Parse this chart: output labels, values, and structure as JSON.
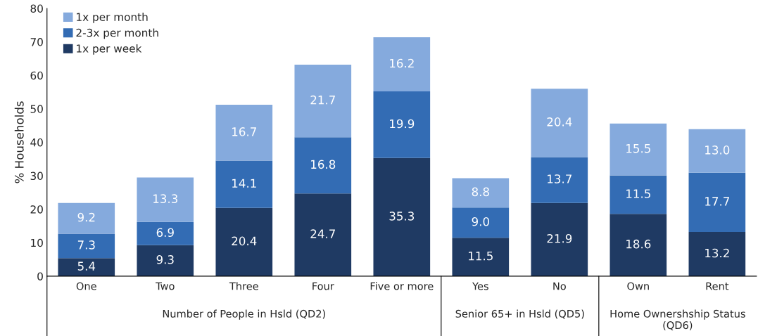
{
  "chart_data": {
    "type": "bar",
    "stacked": true,
    "ylabel": "% Households",
    "categories": [
      "One",
      "Two",
      "Three",
      "Four",
      "Five or more",
      "Yes",
      "No",
      "Own",
      "Rent"
    ],
    "series": [
      {
        "name": "1x per week",
        "color": "#1f3a63",
        "values": [
          5.4,
          9.3,
          20.4,
          24.7,
          35.3,
          11.5,
          21.9,
          18.6,
          13.2
        ],
        "value_labels": [
          "5.4",
          "9.3",
          "20.4",
          "24.7",
          "35.3",
          "11.5",
          "21.9",
          "18.6",
          "13.2"
        ]
      },
      {
        "name": "2-3x per month",
        "color": "#336cb4",
        "values": [
          7.3,
          6.9,
          14.1,
          16.8,
          19.9,
          9.0,
          13.7,
          11.5,
          17.7
        ],
        "value_labels": [
          "7.3",
          "6.9",
          "14.1",
          "16.8",
          "19.9",
          "9.0",
          "13.7",
          "11.5",
          "17.7"
        ]
      },
      {
        "name": "1x per month",
        "color": "#85aadd",
        "values": [
          9.2,
          13.3,
          16.7,
          21.7,
          16.2,
          8.8,
          20.4,
          15.5,
          13.0
        ],
        "value_labels": [
          "9.2",
          "13.3",
          "16.7",
          "21.7",
          "16.2",
          "8.8",
          "20.4",
          "15.5",
          "13.0"
        ]
      }
    ],
    "ylim": [
      0,
      80
    ],
    "yticks": [
      0,
      10,
      20,
      30,
      40,
      50,
      60,
      70,
      80
    ],
    "grid": false,
    "legend": "top left",
    "annotations": [
      "Number of People in Hsld (QD2)",
      "Senior 65+ in Hsld (QD5)",
      "Home Ownershship Status (QD6)"
    ]
  }
}
